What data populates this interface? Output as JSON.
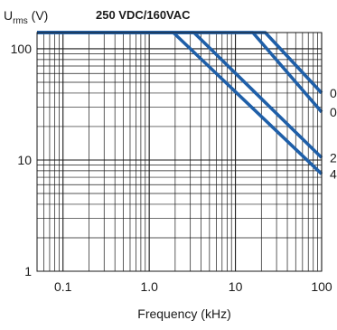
{
  "chart_data": {
    "type": "line",
    "ylabel_main": "U",
    "ylabel_sub": "rms",
    "ylabel_unit": " (V)",
    "title": "250 VDC/160VAC",
    "xlabel": "Frequency (kHz)",
    "x_scale": "log",
    "y_scale": "log",
    "xlim": [
      0.05,
      100
    ],
    "ylim": [
      1,
      140
    ],
    "grid": true,
    "x_ticks": [
      {
        "value": 0.1,
        "label": "0.1"
      },
      {
        "value": 1,
        "label": "1.0"
      },
      {
        "value": 10,
        "label": "10"
      },
      {
        "value": 100,
        "label": "100"
      }
    ],
    "y_ticks": [
      {
        "value": 1,
        "label": "1"
      },
      {
        "value": 10,
        "label": "10"
      },
      {
        "value": 100,
        "label": "100"
      }
    ],
    "line_color": "#1f5fa8",
    "series": [
      {
        "name": "0",
        "x": [
          0.05,
          22.2,
          100
        ],
        "y": [
          140,
          140,
          40
        ]
      },
      {
        "name": "0",
        "x": [
          0.05,
          15.9,
          100
        ],
        "y": [
          140,
          140,
          27
        ]
      },
      {
        "name": "2",
        "x": [
          0.05,
          3.3,
          100
        ],
        "y": [
          140,
          140,
          10.5
        ]
      },
      {
        "name": "4",
        "x": [
          0.05,
          1.9,
          100
        ],
        "y": [
          140,
          140,
          7.5
        ]
      }
    ]
  }
}
